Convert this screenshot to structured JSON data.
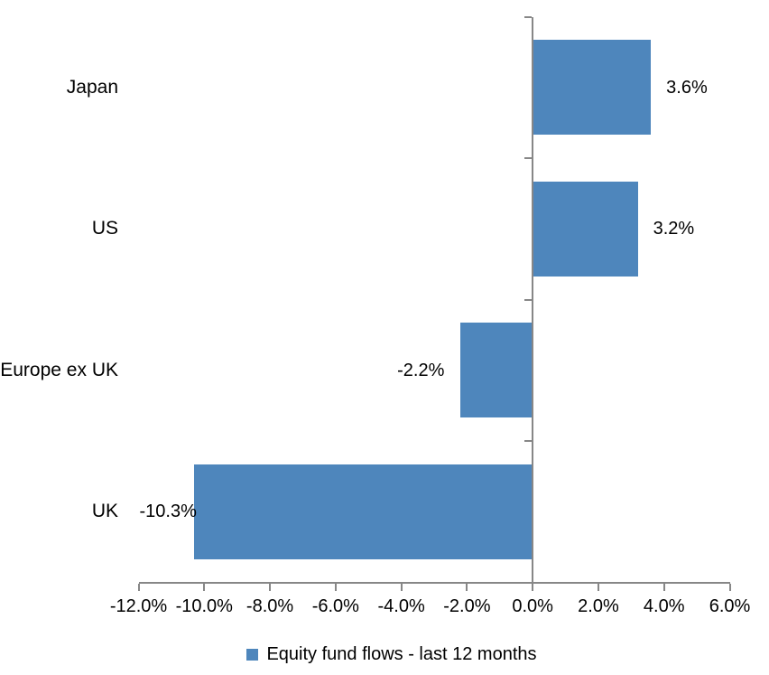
{
  "chart_data": {
    "type": "bar",
    "orientation": "horizontal",
    "title": "",
    "categories": [
      "Japan",
      "US",
      "Europe ex UK",
      "UK"
    ],
    "values": [
      3.6,
      3.2,
      -2.2,
      -10.3
    ],
    "value_labels": [
      "3.6%",
      "3.2%",
      "-2.2%",
      "-10.3%"
    ],
    "series": [
      {
        "name": "Equity fund flows - last 12 months",
        "values": [
          3.6,
          3.2,
          -2.2,
          -10.3
        ]
      }
    ],
    "xlim": [
      -12,
      6
    ],
    "x_tick_step": 2,
    "x_tick_labels": [
      "-12.0%",
      "-10.0%",
      "-8.0%",
      "-6.0%",
      "-4.0%",
      "-2.0%",
      "0.0%",
      "2.0%",
      "4.0%",
      "6.0%"
    ],
    "grid": false,
    "legend_position": "bottom",
    "bar_color": "#4E86BC",
    "axis_color": "#878787",
    "text_color": "#000000"
  },
  "legend": {
    "label": "Equity fund flows - last 12 months",
    "swatch_color": "#4E86BC"
  }
}
